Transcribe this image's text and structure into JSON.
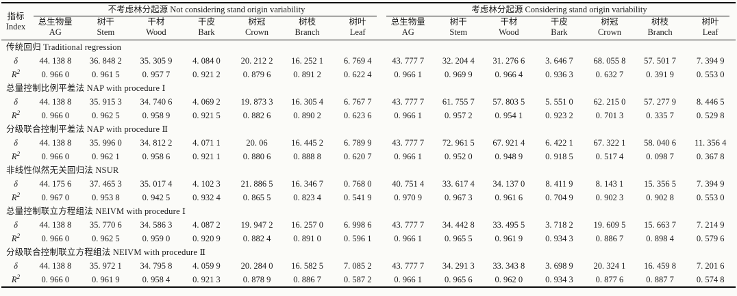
{
  "table": {
    "index_header": {
      "zh": "指标",
      "en": "Index"
    },
    "groups": [
      {
        "label": "不考虑林分起源 Not considering stand origin variability"
      },
      {
        "label": "考虑林分起源 Considering stand origin variability"
      }
    ],
    "columns": [
      {
        "zh": "总生物量",
        "en": "AG"
      },
      {
        "zh": "树干",
        "en": "Stem"
      },
      {
        "zh": "干材",
        "en": "Wood"
      },
      {
        "zh": "干皮",
        "en": "Bark"
      },
      {
        "zh": "树冠",
        "en": "Crown"
      },
      {
        "zh": "树枝",
        "en": "Branch"
      },
      {
        "zh": "树叶",
        "en": "Leaf"
      }
    ],
    "row_labels": {
      "delta": "δ",
      "r2_base": "R",
      "r2_sup": "2"
    },
    "sections": [
      {
        "title": "传统回归 Traditional regression",
        "delta": [
          "44. 138 8",
          "36. 848 2",
          "35. 305 9",
          "4. 084 0",
          "20. 212 2",
          "16. 252 1",
          "6. 769 4",
          "43. 777 7",
          "32. 204 4",
          "31. 276 6",
          "3. 646 7",
          "68. 055 8",
          "57. 501 7",
          "7. 394 9"
        ],
        "r2": [
          "0. 966 0",
          "0. 961 5",
          "0. 957 7",
          "0. 921 2",
          "0. 879 6",
          "0. 891 2",
          "0. 622 4",
          "0. 966 1",
          "0. 969 9",
          "0. 966 4",
          "0. 936 3",
          "0. 632 7",
          "0. 391 9",
          "0. 553 0"
        ]
      },
      {
        "title": "总量控制比例平差法 NAP with procedure Ⅰ",
        "delta": [
          "44. 138 8",
          "35. 915 3",
          "34. 740 6",
          "4. 069 2",
          "19. 873 3",
          "16. 305 4",
          "6. 767 7",
          "43. 777 7",
          "61. 755 7",
          "57. 803 5",
          "5. 551 0",
          "62. 215 0",
          "57. 277 9",
          "8. 446 5"
        ],
        "r2": [
          "0. 966 0",
          "0. 962 5",
          "0. 958 9",
          "0. 921 5",
          "0. 882 6",
          "0. 890 2",
          "0. 623 6",
          "0. 966 1",
          "0. 957 2",
          "0. 954 1",
          "0. 923 2",
          "0. 701 3",
          "0. 335 7",
          "0. 529 8"
        ]
      },
      {
        "title": "分级联合控制平差法 NAP with procedure Ⅱ",
        "delta": [
          "44. 138 8",
          "35. 996 0",
          "34. 812 2",
          "4. 071 1",
          "20. 06",
          "16. 445 2",
          "6. 789 9",
          "43. 777 7",
          "72. 961 5",
          "67. 921 4",
          "6. 422 1",
          "67. 322 1",
          "58. 040 6",
          "11. 356 4"
        ],
        "r2": [
          "0. 966 0",
          "0. 962 1",
          "0. 958 6",
          "0. 921 1",
          "0. 880 6",
          "0. 888 8",
          "0. 620 7",
          "0. 966 1",
          "0. 952 0",
          "0. 948 9",
          "0. 918 5",
          "0. 517 4",
          "0. 098 7",
          "0. 367 8"
        ]
      },
      {
        "title": "非线性似然无关回归法 NSUR",
        "delta": [
          "44. 175 6",
          "37. 465 3",
          "35. 017 4",
          "4. 102 3",
          "21. 886 5",
          "16. 346 7",
          "0. 768 0",
          "40. 751 4",
          "33. 617 4",
          "34. 137 0",
          "8. 411 9",
          "8. 143 1",
          "15. 356 5",
          "7. 394 9"
        ],
        "r2": [
          "0. 967 0",
          "0. 953 8",
          "0. 942 5",
          "0. 932 4",
          "0. 865 5",
          "0. 823 4",
          "0. 541 9",
          "0. 970 9",
          "0. 967 3",
          "0. 961 6",
          "0. 704 9",
          "0. 902 3",
          "0. 902 8",
          "0. 553 0"
        ]
      },
      {
        "title": "总量控制联立方程组法 NEIVM with procedure Ⅰ",
        "delta": [
          "44. 138 8",
          "35. 770 6",
          "34. 586 3",
          "4. 087 2",
          "19. 947 2",
          "16. 257 0",
          "6. 998 6",
          "43. 777 7",
          "34. 442 8",
          "33. 495 5",
          "3. 718 2",
          "19. 609 5",
          "15. 663 7",
          "7. 214 9"
        ],
        "r2": [
          "0. 966 0",
          "0. 962 5",
          "0. 959 0",
          "0. 920 9",
          "0. 882 4",
          "0. 891 0",
          "0. 596 1",
          "0. 966 1",
          "0. 965 5",
          "0. 961 9",
          "0. 934 3",
          "0. 886 7",
          "0. 898 4",
          "0. 579 6"
        ]
      },
      {
        "title": "分级联合控制联立方程组法 NEIVM with procedure Ⅱ",
        "delta": [
          "44. 138 8",
          "35. 972 1",
          "34. 795 8",
          "4. 059 9",
          "20. 284 0",
          "16. 582 5",
          "7. 085 2",
          "43. 777 7",
          "34. 291 3",
          "33. 343 8",
          "3. 698 9",
          "20. 324 1",
          "16. 459 8",
          "7. 201 6"
        ],
        "r2": [
          "0. 966 0",
          "0. 961 9",
          "0. 958 4",
          "0. 921 3",
          "0. 878 9",
          "0. 886 7",
          "0. 587 2",
          "0. 966 1",
          "0. 965 6",
          "0. 962 0",
          "0. 934 3",
          "0. 877 6",
          "0. 887 7",
          "0. 574 8"
        ]
      }
    ]
  }
}
